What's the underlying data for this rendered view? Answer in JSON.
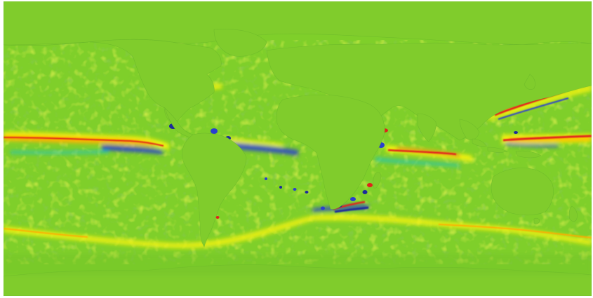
{
  "map": {
    "colormap": "jet",
    "colors": {
      "ocean_base": "#7fcf2a",
      "land": "#80cc2c",
      "yellow": "#f3f20c",
      "orange": "#ffa800",
      "red": "#e0221b",
      "cyan": "#19c3c6",
      "blue": "#2a3fcf",
      "navy": "#1d2a9b",
      "dark_green": "#4aa12a"
    },
    "visible_text": []
  }
}
